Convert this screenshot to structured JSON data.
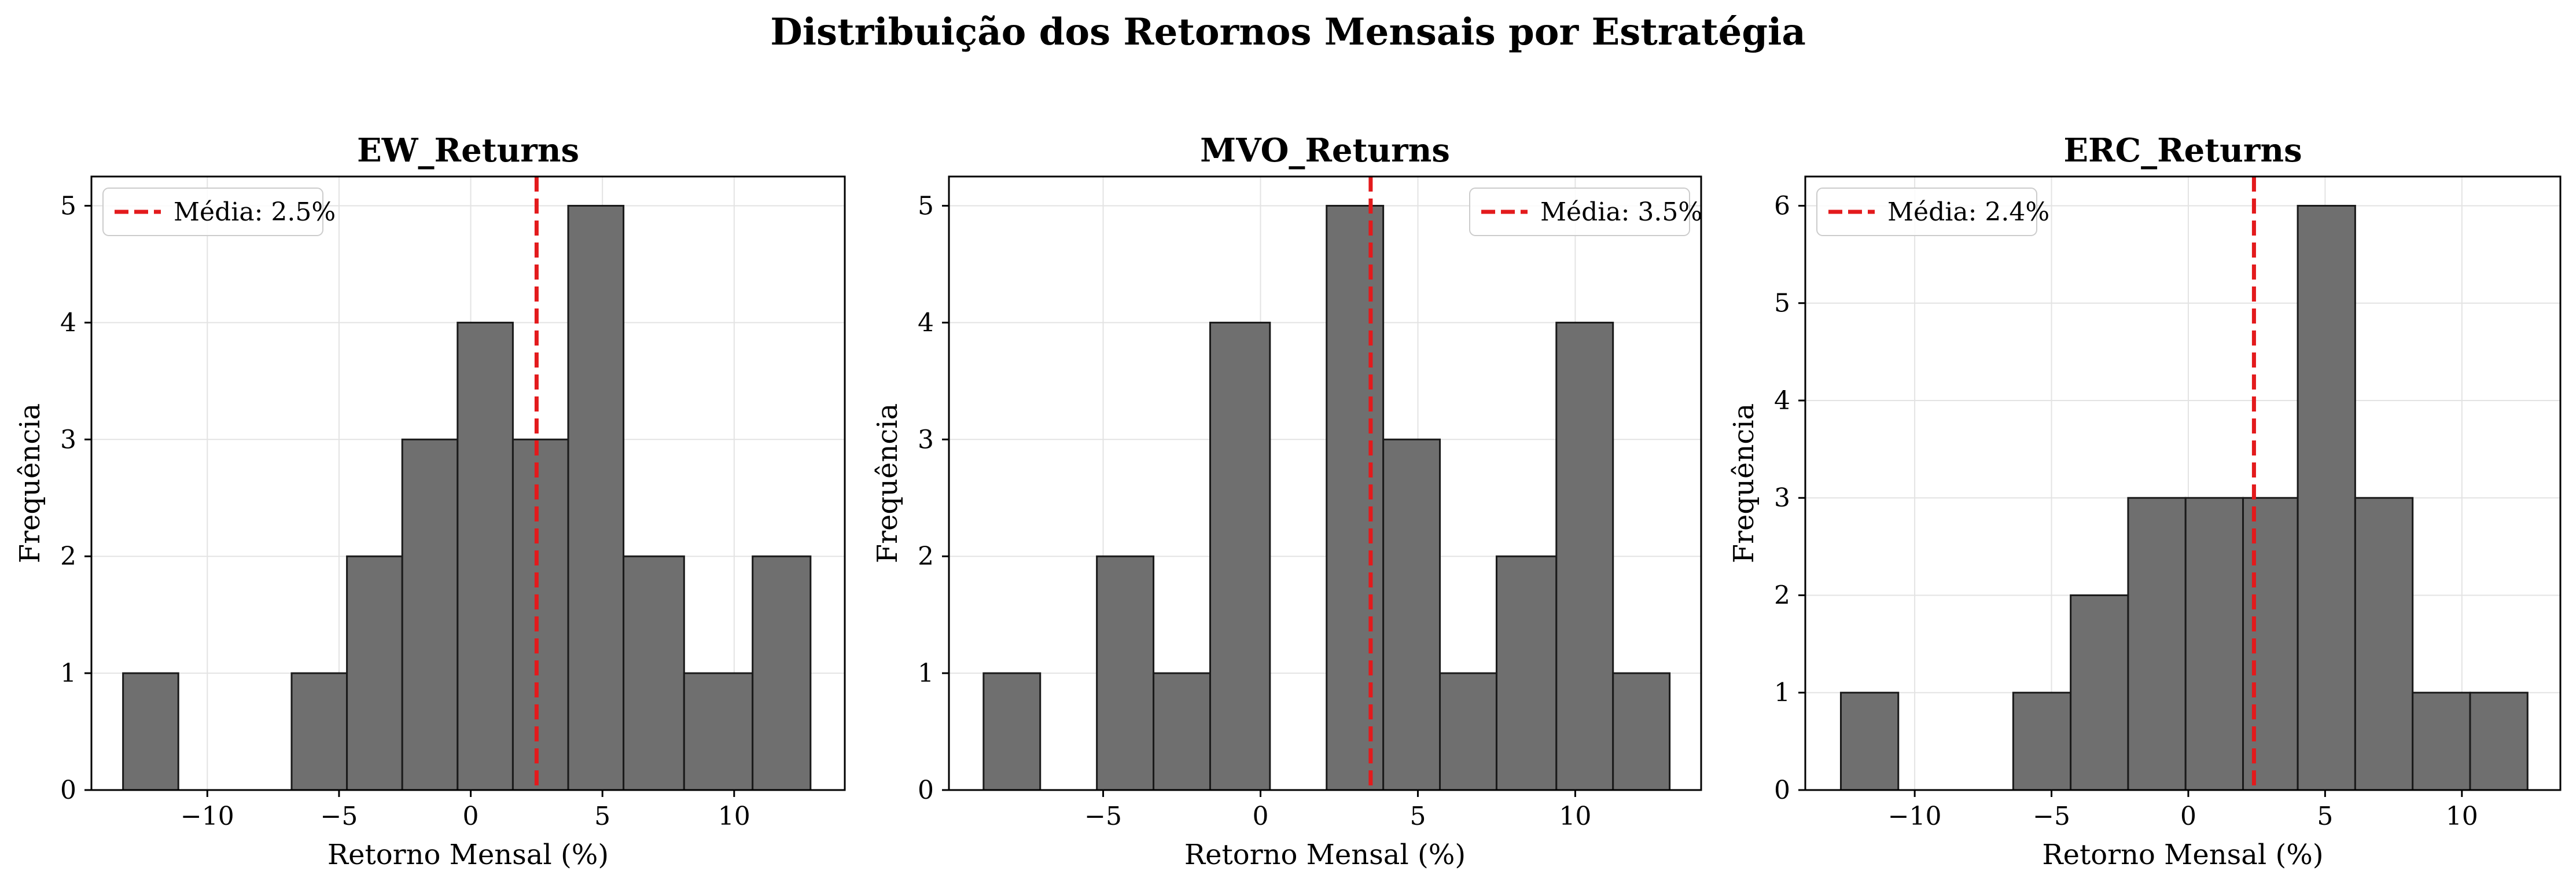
{
  "figure": {
    "title": "Distribuição dos Retornos Mensais por Estratégia"
  },
  "colors": {
    "bar_fill": "#6f6f6f",
    "bar_edge": "#1a1a1a",
    "mean_line": "#e31a1c",
    "grid": "#e3e3e3"
  },
  "chart_data": [
    {
      "type": "bar",
      "title": "EW_Returns",
      "xlabel": "Retorno Mensal (%)",
      "ylabel": "Frequência",
      "xlim": [
        -14.4,
        14.2
      ],
      "ylim": [
        0,
        5.25
      ],
      "xticks": [
        -10,
        -5,
        0,
        5,
        10
      ],
      "xtick_labels": [
        "−10",
        "−5",
        "0",
        "5",
        "10"
      ],
      "yticks": [
        0,
        1,
        2,
        3,
        4,
        5
      ],
      "ytick_labels": [
        "0",
        "1",
        "2",
        "3",
        "4",
        "5"
      ],
      "bin_edges": [
        -13.1,
        -11.03,
        -8.96,
        -6.89,
        -4.82,
        -2.75,
        -0.68,
        1.39,
        3.46,
        5.53,
        7.6,
        9.67,
        11.74,
        13.0
      ],
      "bins": [
        {
          "start": -13.2,
          "end": -11.1,
          "count": 1
        },
        {
          "start": -6.8,
          "end": -4.7,
          "count": 1
        },
        {
          "start": -4.7,
          "end": -2.6,
          "count": 2
        },
        {
          "start": -2.6,
          "end": -0.5,
          "count": 3
        },
        {
          "start": -0.5,
          "end": 1.6,
          "count": 4
        },
        {
          "start": 1.6,
          "end": 3.7,
          "count": 3
        },
        {
          "start": 3.7,
          "end": 5.8,
          "count": 5
        },
        {
          "start": 5.8,
          "end": 8.1,
          "count": 2
        },
        {
          "start": 8.1,
          "end": 10.7,
          "count": 1
        },
        {
          "start": 10.7,
          "end": 12.9,
          "count": 2
        }
      ],
      "mean": 2.5,
      "legend_label": "Média: 2.5%",
      "legend_position": "upper left",
      "grid": true
    },
    {
      "type": "bar",
      "title": "MVO_Returns",
      "xlabel": "Retorno Mensal (%)",
      "ylabel": "Frequência",
      "xlim": [
        -9.9,
        14.0
      ],
      "ylim": [
        0,
        5.25
      ],
      "xticks": [
        -5,
        0,
        5,
        10
      ],
      "xtick_labels": [
        "−5",
        "0",
        "5",
        "10"
      ],
      "yticks": [
        0,
        1,
        2,
        3,
        4,
        5
      ],
      "ytick_labels": [
        "0",
        "1",
        "2",
        "3",
        "4",
        "5"
      ],
      "bins": [
        {
          "start": -8.8,
          "end": -7.0,
          "count": 1
        },
        {
          "start": -5.2,
          "end": -3.4,
          "count": 2
        },
        {
          "start": -3.4,
          "end": -1.6,
          "count": 1
        },
        {
          "start": -1.6,
          "end": 0.3,
          "count": 4
        },
        {
          "start": 2.1,
          "end": 3.9,
          "count": 5
        },
        {
          "start": 3.9,
          "end": 5.7,
          "count": 3
        },
        {
          "start": 5.7,
          "end": 7.5,
          "count": 1
        },
        {
          "start": 7.5,
          "end": 9.4,
          "count": 2
        },
        {
          "start": 9.4,
          "end": 11.2,
          "count": 4
        },
        {
          "start": 11.2,
          "end": 13.0,
          "count": 1
        }
      ],
      "mean": 3.5,
      "legend_label": "Média: 3.5%",
      "legend_position": "upper right",
      "grid": true
    },
    {
      "type": "bar",
      "title": "ERC_Returns",
      "xlabel": "Retorno Mensal (%)",
      "ylabel": "Frequência",
      "xlim": [
        -14.0,
        13.6
      ],
      "ylim": [
        0,
        6.3
      ],
      "xticks": [
        -10,
        -5,
        0,
        5,
        10
      ],
      "xtick_labels": [
        "−10",
        "−5",
        "0",
        "5",
        "10"
      ],
      "yticks": [
        0,
        1,
        2,
        3,
        4,
        5,
        6
      ],
      "ytick_labels": [
        "0",
        "1",
        "2",
        "3",
        "4",
        "5",
        "6"
      ],
      "bins": [
        {
          "start": -12.7,
          "end": -10.6,
          "count": 1
        },
        {
          "start": -6.4,
          "end": -4.3,
          "count": 1
        },
        {
          "start": -4.3,
          "end": -2.2,
          "count": 2
        },
        {
          "start": -2.2,
          "end": -0.1,
          "count": 3
        },
        {
          "start": -0.1,
          "end": 2.0,
          "count": 3
        },
        {
          "start": 2.0,
          "end": 4.0,
          "count": 3
        },
        {
          "start": 4.0,
          "end": 6.1,
          "count": 6
        },
        {
          "start": 6.1,
          "end": 8.2,
          "count": 3
        },
        {
          "start": 8.2,
          "end": 10.3,
          "count": 1
        },
        {
          "start": 10.3,
          "end": 12.4,
          "count": 1
        }
      ],
      "mean": 2.4,
      "legend_label": "Média: 2.4%",
      "legend_position": "upper left",
      "grid": true
    }
  ]
}
